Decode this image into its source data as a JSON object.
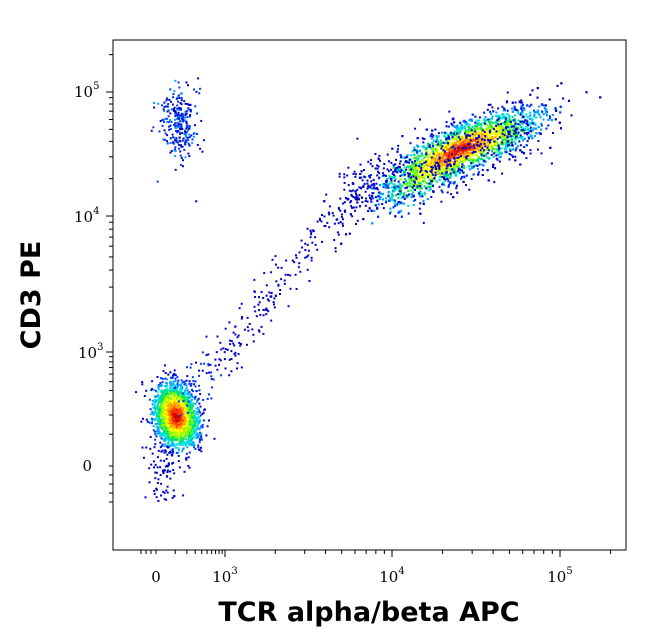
{
  "chart_data": {
    "type": "scatter",
    "title": "",
    "xlabel": "TCR alpha/beta APC",
    "ylabel": "CD3 PE",
    "x_scale": "biexponential",
    "y_scale": "biexponential",
    "xlim": [
      -300,
      230000
    ],
    "ylim": [
      -500,
      230000
    ],
    "x_ticks": [
      {
        "base": "0",
        "exp": ""
      },
      {
        "base": "10",
        "exp": "3"
      },
      {
        "base": "10",
        "exp": "4"
      },
      {
        "base": "10",
        "exp": "5"
      }
    ],
    "y_ticks": [
      {
        "base": "0",
        "exp": ""
      },
      {
        "base": "10",
        "exp": "3"
      },
      {
        "base": "10",
        "exp": "4"
      },
      {
        "base": "10",
        "exp": "5"
      }
    ],
    "grid": false,
    "legend": "none",
    "color_scale": "density (blue-cyan-green-yellow-red)",
    "populations": [
      {
        "label": "",
        "x_center": 100,
        "y_center": 200,
        "approx_events": "high density"
      },
      {
        "label": "",
        "x_center": 25000,
        "y_center": 35000,
        "approx_events": "high density"
      },
      {
        "label": "",
        "x_center": 120,
        "y_center": 70000,
        "approx_events": "low density"
      }
    ]
  }
}
